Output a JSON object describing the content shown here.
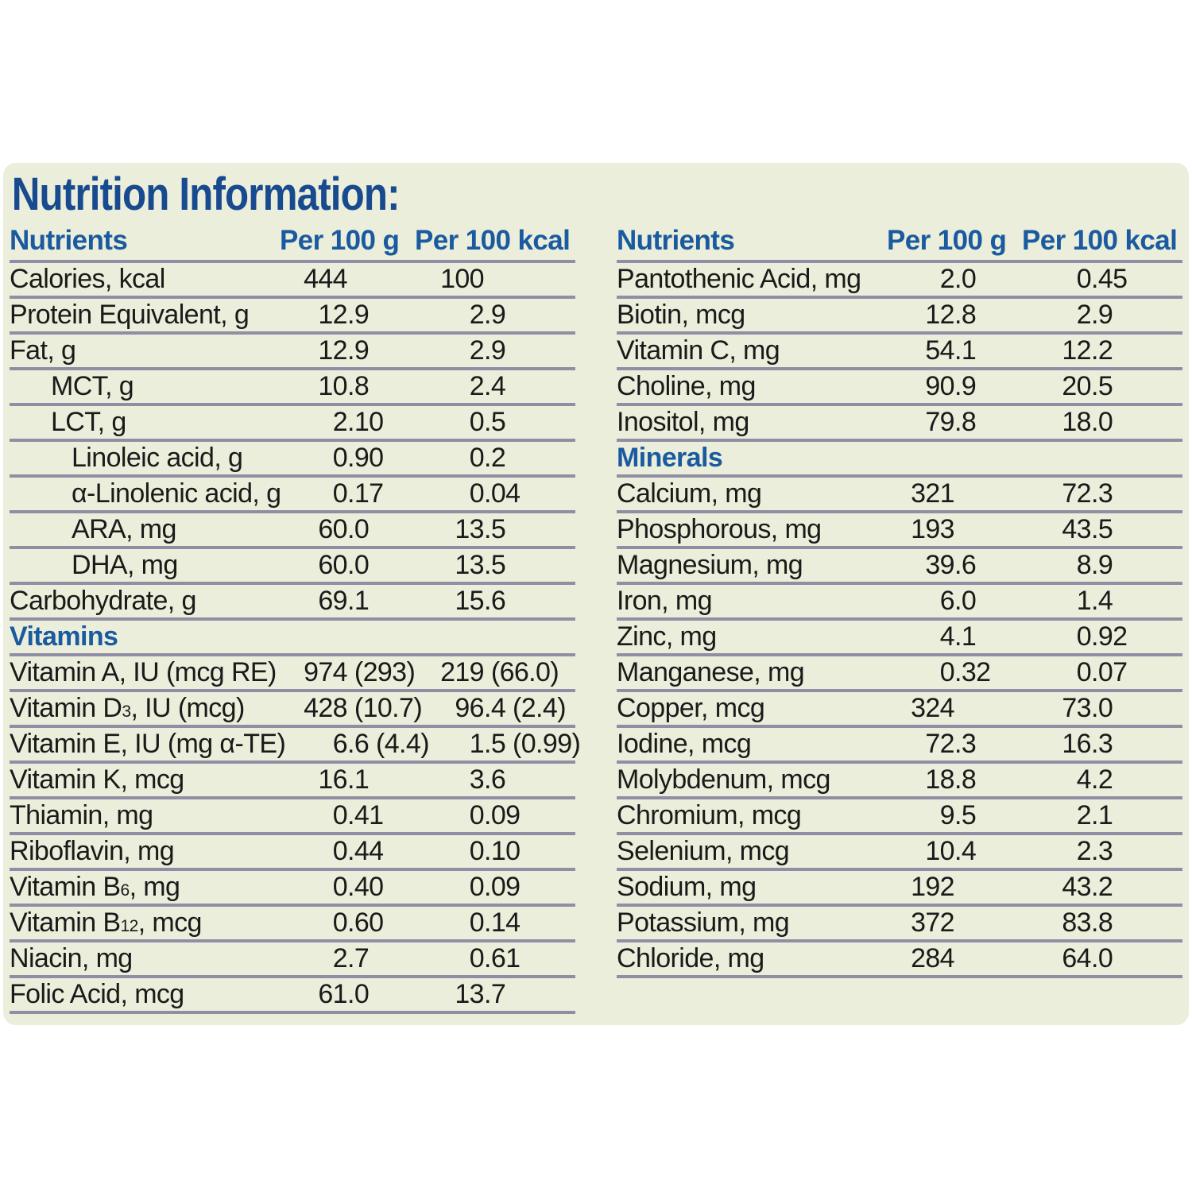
{
  "title": "Nutrition Information:",
  "table_headers": {
    "nutrients": "Nutrients",
    "per_100_g": "Per 100 g",
    "per_100_kcal": "Per 100 kcal"
  },
  "tables": {
    "left": {
      "rows": [
        {
          "label": "Calories, kcal",
          "indent": 0,
          "per_100_g": "444",
          "per_100_kcal": "100"
        },
        {
          "label": "Protein Equivalent, g",
          "indent": 0,
          "per_100_g": "12.9",
          "per_100_kcal": "2.9"
        },
        {
          "label": "Fat, g",
          "indent": 0,
          "per_100_g": "12.9",
          "per_100_kcal": "2.9"
        },
        {
          "label": "MCT, g",
          "indent": 1,
          "per_100_g": "10.8",
          "per_100_kcal": "2.4"
        },
        {
          "label": "LCT, g",
          "indent": 1,
          "per_100_g": "2.10",
          "per_100_kcal": "0.5"
        },
        {
          "label": "Linoleic acid, g",
          "indent": 2,
          "per_100_g": "0.90",
          "per_100_kcal": "0.2"
        },
        {
          "label": "α-Linolenic acid, g",
          "indent": 2,
          "per_100_g": "0.17",
          "per_100_kcal": "0.04"
        },
        {
          "label": "ARA, mg",
          "indent": 2,
          "per_100_g": "60.0",
          "per_100_kcal": "13.5"
        },
        {
          "label": "DHA, mg",
          "indent": 2,
          "per_100_g": "60.0",
          "per_100_kcal": "13.5"
        },
        {
          "label": "Carbohydrate, g",
          "indent": 0,
          "per_100_g": "69.1",
          "per_100_kcal": "15.6"
        },
        {
          "section": "Vitamins"
        },
        {
          "label": "Vitamin A, IU (mcg RE)",
          "indent": 0,
          "per_100_g": "974 (293)",
          "per_100_kcal": "219 (66.0)"
        },
        {
          "label": "Vitamin D3, IU (mcg)",
          "indent": 0,
          "per_100_g": "428 (10.7)",
          "per_100_kcal": "96.4 (2.4)"
        },
        {
          "label": "Vitamin E, IU (mg α-TE)",
          "indent": 0,
          "per_100_g": "6.6 (4.4)",
          "per_100_kcal": "1.5 (0.99)"
        },
        {
          "label": "Vitamin K, mcg",
          "indent": 0,
          "per_100_g": "16.1",
          "per_100_kcal": "3.6"
        },
        {
          "label": "Thiamin, mg",
          "indent": 0,
          "per_100_g": "0.41",
          "per_100_kcal": "0.09"
        },
        {
          "label": "Riboflavin, mg",
          "indent": 0,
          "per_100_g": "0.44",
          "per_100_kcal": "0.10"
        },
        {
          "label": "Vitamin B6, mg",
          "indent": 0,
          "per_100_g": "0.40",
          "per_100_kcal": "0.09"
        },
        {
          "label": "Vitamin B12, mcg",
          "indent": 0,
          "per_100_g": "0.60",
          "per_100_kcal": "0.14"
        },
        {
          "label": "Niacin, mg",
          "indent": 0,
          "per_100_g": "2.7",
          "per_100_kcal": "0.61"
        },
        {
          "label": "Folic Acid, mcg",
          "indent": 0,
          "per_100_g": "61.0",
          "per_100_kcal": "13.7"
        }
      ]
    },
    "right": {
      "rows": [
        {
          "label": "Pantothenic Acid, mg",
          "indent": 0,
          "per_100_g": "2.0",
          "per_100_kcal": "0.45"
        },
        {
          "label": "Biotin, mcg",
          "indent": 0,
          "per_100_g": "12.8",
          "per_100_kcal": "2.9"
        },
        {
          "label": "Vitamin C, mg",
          "indent": 0,
          "per_100_g": "54.1",
          "per_100_kcal": "12.2"
        },
        {
          "label": "Choline, mg",
          "indent": 0,
          "per_100_g": "90.9",
          "per_100_kcal": "20.5"
        },
        {
          "label": "Inositol, mg",
          "indent": 0,
          "per_100_g": "79.8",
          "per_100_kcal": "18.0"
        },
        {
          "section": "Minerals"
        },
        {
          "label": "Calcium, mg",
          "indent": 0,
          "per_100_g": "321",
          "per_100_kcal": "72.3"
        },
        {
          "label": "Phosphorous, mg",
          "indent": 0,
          "per_100_g": "193",
          "per_100_kcal": "43.5"
        },
        {
          "label": "Magnesium, mg",
          "indent": 0,
          "per_100_g": "39.6",
          "per_100_kcal": "8.9"
        },
        {
          "label": "Iron, mg",
          "indent": 0,
          "per_100_g": "6.0",
          "per_100_kcal": "1.4"
        },
        {
          "label": "Zinc, mg",
          "indent": 0,
          "per_100_g": "4.1",
          "per_100_kcal": "0.92"
        },
        {
          "label": "Manganese, mg",
          "indent": 0,
          "per_100_g": "0.32",
          "per_100_kcal": "0.07"
        },
        {
          "label": "Copper, mcg",
          "indent": 0,
          "per_100_g": "324",
          "per_100_kcal": "73.0"
        },
        {
          "label": "Iodine, mcg",
          "indent": 0,
          "per_100_g": "72.3",
          "per_100_kcal": "16.3"
        },
        {
          "label": "Molybdenum, mcg",
          "indent": 0,
          "per_100_g": "18.8",
          "per_100_kcal": "4.2"
        },
        {
          "label": "Chromium, mcg",
          "indent": 0,
          "per_100_g": "9.5",
          "per_100_kcal": "2.1"
        },
        {
          "label": "Selenium, mcg",
          "indent": 0,
          "per_100_g": "10.4",
          "per_100_kcal": "2.3"
        },
        {
          "label": "Sodium, mg",
          "indent": 0,
          "per_100_g": "192",
          "per_100_kcal": "43.2"
        },
        {
          "label": "Potassium, mg",
          "indent": 0,
          "per_100_g": "372",
          "per_100_kcal": "83.8"
        },
        {
          "label": "Chloride, mg",
          "indent": 0,
          "per_100_g": "284",
          "per_100_kcal": "64.0"
        }
      ]
    }
  },
  "colors": {
    "panel_bg": "#ebeeda",
    "title_blue": "#174a8f",
    "header_blue": "#1a5aa0",
    "text": "#1a1a1a",
    "separator": "#908ea4",
    "page_bg": "#ffffff"
  }
}
